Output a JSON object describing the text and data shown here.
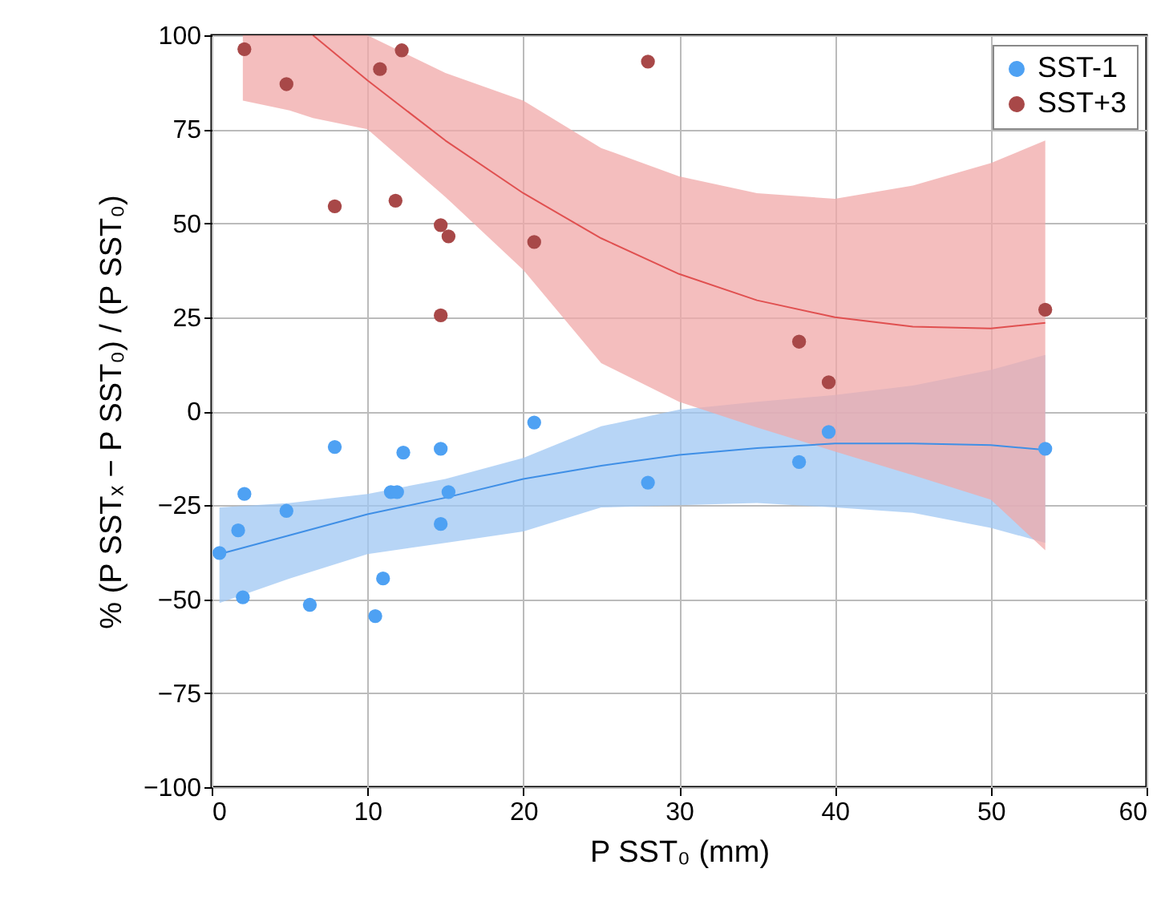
{
  "chart_data": {
    "type": "scatter",
    "xlabel": "P SST₀ (mm)",
    "ylabel": "% (P SSTₓ − P SST₀) / (P SST₀)",
    "xlim": [
      0,
      60
    ],
    "xticks": [
      0,
      10,
      20,
      30,
      40,
      50,
      60
    ],
    "ylim": [
      -100,
      100
    ],
    "yticks": [
      -100,
      -75,
      -50,
      -25,
      0,
      25,
      50,
      75,
      100
    ],
    "grid": true,
    "legend": "top right",
    "marker": "circle",
    "series": [
      {
        "name": "SST-1",
        "color": "#4ea1f3",
        "x": [
          0.5,
          1.7,
          2.1,
          2.0,
          4.8,
          6.3,
          7.9,
          11.0,
          10.5,
          11.5,
          11.9,
          12.3,
          14.7,
          14.7,
          15.2,
          20.7,
          28.0,
          37.7,
          39.6,
          53.5
        ],
        "values": [
          -37.7,
          -31.7,
          -22,
          -49.5,
          -26.5,
          -51.5,
          -9.5,
          -44.5,
          -54.5,
          -21.5,
          -21.5,
          -11,
          -10,
          -30,
          -21.5,
          -3,
          -19,
          -13.5,
          -5.5,
          -10
        ]
      },
      {
        "name": "SST+3",
        "color": "#a84848",
        "x": [
          2.1,
          4.8,
          7.9,
          10.8,
          12.2,
          11.8,
          14.7,
          15.2,
          14.7,
          20.7,
          28.0,
          37.7,
          39.6,
          53.5
        ],
        "values": [
          96.3,
          87,
          54.5,
          91,
          96,
          56,
          49.5,
          46.5,
          25.5,
          45,
          93,
          18.5,
          7.7,
          27
        ]
      },
      {
        "type": "line",
        "marker": "none",
        "color": "#3f8fe6",
        "x": [
          0.5,
          5,
          10,
          15,
          20,
          25,
          30,
          35,
          40,
          45,
          50,
          53.5
        ],
        "values": [
          -38,
          -33,
          -27.4,
          -23,
          -18,
          -14.5,
          -11.6,
          -9.8,
          -8.6,
          -8.6,
          -9,
          -10.3
        ],
        "lower": [
          -51,
          -44.5,
          -38,
          -35,
          -32,
          -25.6,
          -25,
          -24.4,
          -25.6,
          -27,
          -31,
          -35
        ],
        "upper": [
          -25.6,
          -24.4,
          -22,
          -18,
          -12.4,
          -4,
          0.4,
          2.5,
          4.3,
          6.8,
          11,
          15
        ]
      },
      {
        "type": "line",
        "marker": "none",
        "color": "#e05050",
        "x": [
          2,
          5,
          6.5,
          10,
          15,
          20,
          25,
          30,
          35,
          40,
          45,
          50,
          53.5
        ],
        "values": [
          null,
          null,
          100,
          88,
          72,
          58,
          46,
          36.5,
          29.5,
          25,
          22.5,
          22,
          23.5
        ],
        "lower": [
          82.6,
          80,
          78,
          75,
          57,
          37.6,
          12.8,
          2.5,
          -4.3,
          -10.7,
          -17,
          -23.5,
          -37
        ],
        "upper": [
          100,
          100,
          100,
          100,
          90,
          82.6,
          70,
          62.5,
          58,
          56.5,
          60,
          66,
          72
        ]
      }
    ]
  }
}
